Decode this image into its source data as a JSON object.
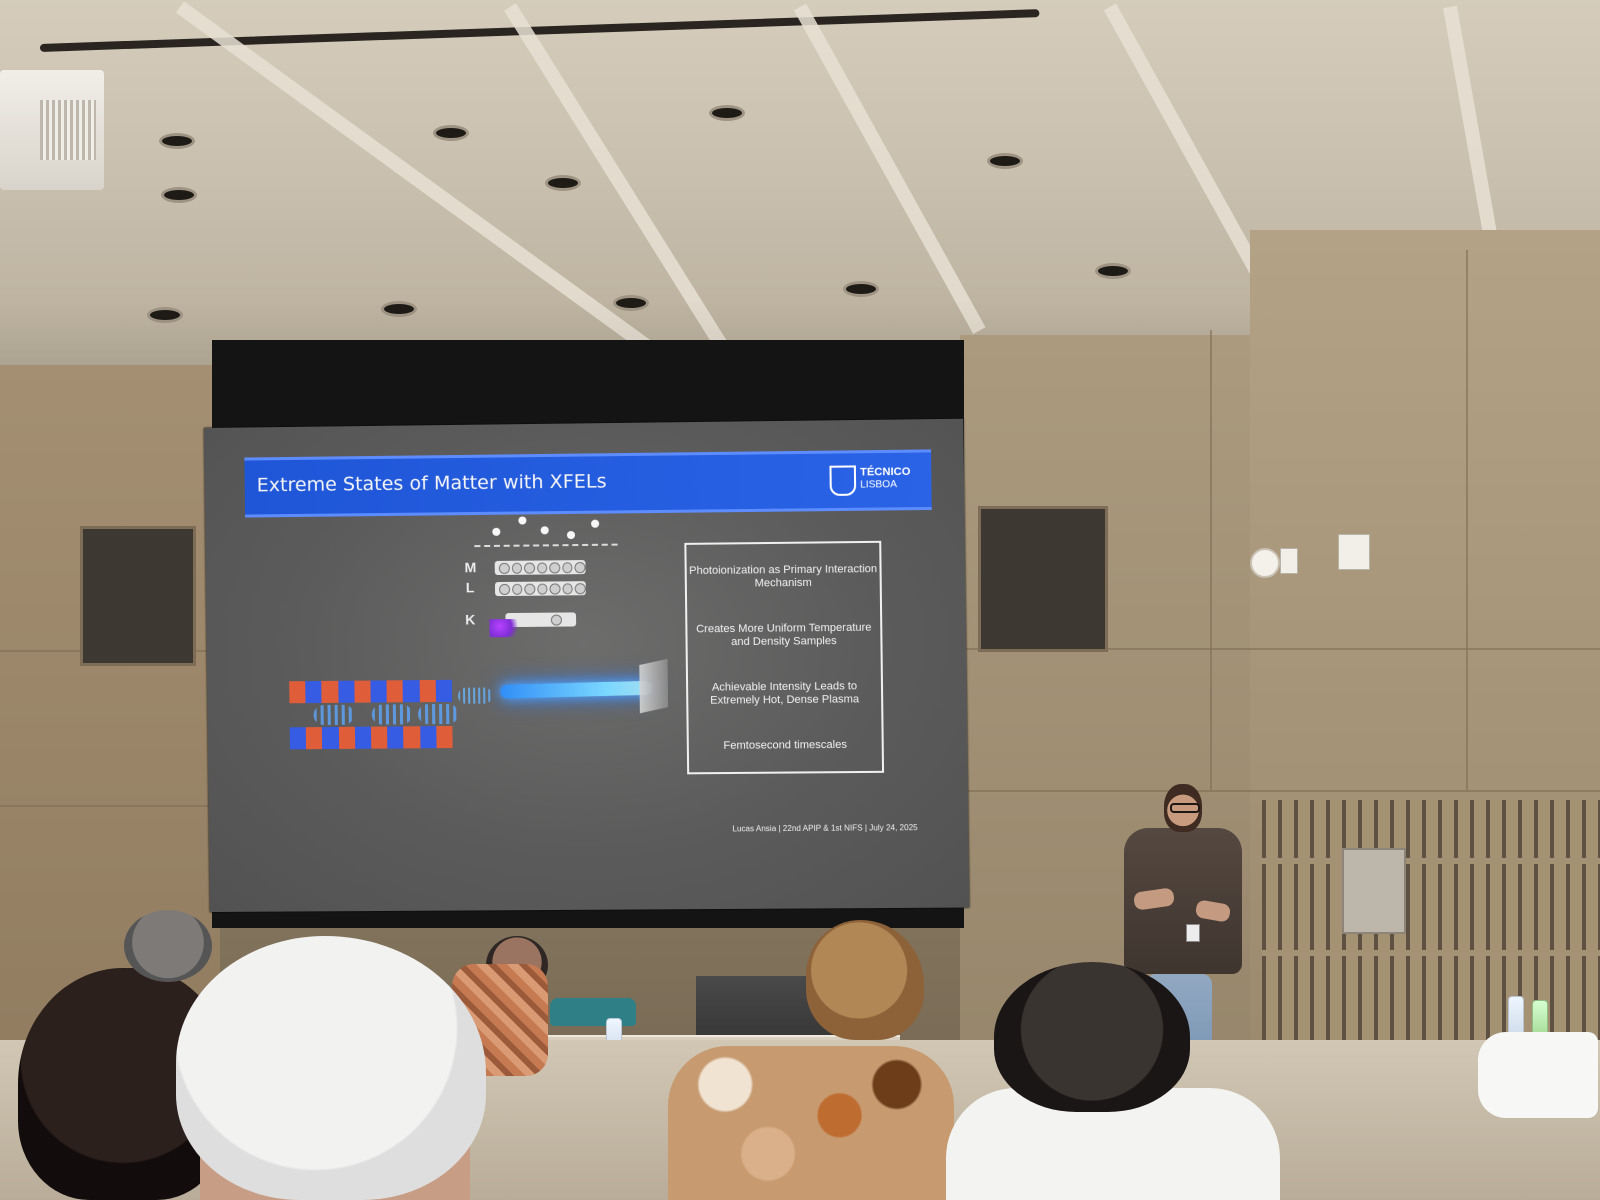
{
  "slide": {
    "title": "Extreme States of Matter with XFELs",
    "logo": {
      "line1": "TÉCNICO",
      "line2": "LISBOA",
      "mark": "ist"
    },
    "diagram": {
      "labels": [
        "M",
        "L",
        "K"
      ]
    },
    "bullets": [
      "Photoionization as Primary Interaction Mechanism",
      "Creates More Uniform Temperature and Density Samples",
      "Achievable Intensity Leads to Extremely Hot, Dense Plasma",
      "Femtosecond timescales"
    ],
    "footer": "Lucas Ansia | 22nd APIP & 1st NIFS | July 24, 2025"
  }
}
